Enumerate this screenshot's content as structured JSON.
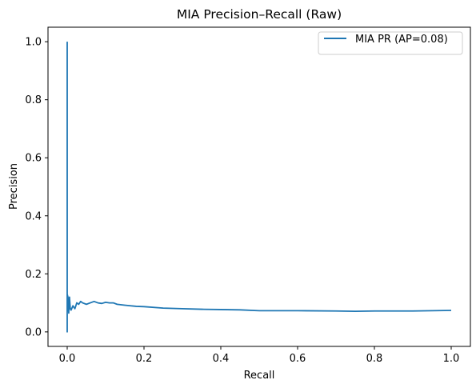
{
  "chart_data": {
    "type": "line",
    "title": "MIA Precision–Recall (Raw)",
    "xlabel": "Recall",
    "ylabel": "Precision",
    "xlim": [
      -0.05,
      1.05
    ],
    "ylim": [
      -0.05,
      1.05
    ],
    "xticks": [
      "0.0",
      "0.2",
      "0.4",
      "0.6",
      "0.8",
      "1.0"
    ],
    "yticks": [
      "0.0",
      "0.2",
      "0.4",
      "0.6",
      "0.8",
      "1.0"
    ],
    "grid": false,
    "legend": {
      "position": "top-right",
      "entries": [
        "MIA PR (AP=0.08)"
      ]
    },
    "series": [
      {
        "name": "MIA PR (AP=0.08)",
        "color": "#1f77b4",
        "x": [
          0.0,
          0.0,
          0.0,
          0.002,
          0.004,
          0.006,
          0.008,
          0.01,
          0.015,
          0.02,
          0.025,
          0.03,
          0.035,
          0.04,
          0.05,
          0.06,
          0.07,
          0.08,
          0.09,
          0.1,
          0.11,
          0.12,
          0.13,
          0.15,
          0.18,
          0.2,
          0.25,
          0.3,
          0.35,
          0.4,
          0.45,
          0.5,
          0.6,
          0.7,
          0.75,
          0.8,
          0.9,
          1.0
        ],
        "y": [
          1.0,
          0.0,
          0.13,
          0.12,
          0.065,
          0.12,
          0.08,
          0.075,
          0.09,
          0.08,
          0.1,
          0.095,
          0.105,
          0.1,
          0.095,
          0.1,
          0.105,
          0.1,
          0.098,
          0.102,
          0.1,
          0.1,
          0.095,
          0.092,
          0.088,
          0.087,
          0.082,
          0.08,
          0.078,
          0.077,
          0.076,
          0.073,
          0.073,
          0.072,
          0.071,
          0.072,
          0.072,
          0.074
        ]
      }
    ]
  }
}
